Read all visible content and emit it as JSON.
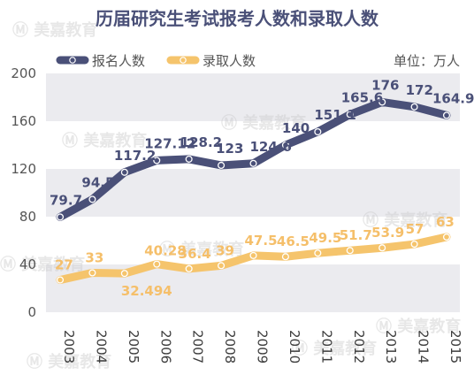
{
  "chart_data": {
    "type": "line",
    "title": "历届研究生考试报考人数和录取人数",
    "unit": "单位：万人",
    "categories": [
      "2003",
      "2004",
      "2005",
      "2006",
      "2007",
      "2008",
      "2009",
      "2010",
      "2011",
      "2012",
      "2013",
      "2014",
      "2015"
    ],
    "series": [
      {
        "name": "报名人数",
        "color": "#4a5078",
        "values": [
          79.7,
          94.5,
          117.2,
          127.12,
          128.2,
          123,
          124.6,
          140,
          151.1,
          165.6,
          176,
          172,
          164.9
        ],
        "labels": [
          "79.7",
          "94.5",
          "117.2",
          "127.12",
          "128.2",
          "123",
          "124.6",
          "140",
          "151.1",
          "165.6",
          "176",
          "172",
          "164.9"
        ]
      },
      {
        "name": "录取人数",
        "color": "#f5c46c",
        "values": [
          27,
          33,
          32.494,
          40.28,
          36.4,
          39,
          47.5,
          46.5,
          49.5,
          51.7,
          53.9,
          57,
          63
        ],
        "labels": [
          "27",
          "33",
          "32.494",
          "40.28",
          "36.4",
          "39",
          "47.5",
          "46.5",
          "49.5",
          "51.7",
          "53.9",
          "57",
          "63"
        ]
      }
    ],
    "ylim": [
      0,
      200
    ],
    "yticks": [
      0,
      40,
      80,
      120,
      160,
      200
    ],
    "grid": "horizontal-bands",
    "legend": "top-left"
  },
  "watermark": "美嘉教育",
  "colors": {
    "band": "#ebebef",
    "title": "#4a5078"
  }
}
